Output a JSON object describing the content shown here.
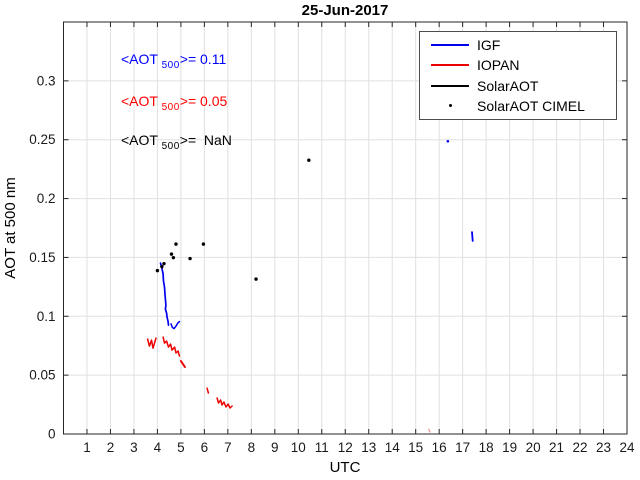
{
  "chart_data": {
    "type": "line",
    "title": "25-Jun-2017",
    "xlabel": "UTC",
    "ylabel": "AOT at 500 nm",
    "xlim": [
      0,
      24
    ],
    "ylim": [
      0,
      0.35
    ],
    "x_ticks": [
      1,
      2,
      3,
      4,
      5,
      6,
      7,
      8,
      9,
      10,
      11,
      12,
      13,
      14,
      15,
      16,
      17,
      18,
      19,
      20,
      21,
      22,
      23,
      24
    ],
    "y_ticks": [
      0,
      0.05,
      0.1,
      0.15,
      0.2,
      0.25,
      0.3
    ],
    "y_tick_labels": [
      "0",
      "0.05",
      "0.1",
      "0.15",
      "0.2",
      "0.25",
      "0.3"
    ],
    "grid": true,
    "grid_color": "#e0e0e0",
    "axis_color": "#262626",
    "legend_position": "top-right",
    "series": [
      {
        "name": "IGF",
        "color": "#0000EE",
        "type": "line",
        "segments": [
          {
            "pts": [
              [
                4.13,
                0.1452
              ],
              [
                4.19,
                0.1409
              ],
              [
                4.24,
                0.1358
              ],
              [
                4.26,
                0.1299
              ],
              [
                4.3,
                0.1248
              ],
              [
                4.32,
                0.1197
              ],
              [
                4.34,
                0.1146
              ],
              [
                4.36,
                0.1095
              ],
              [
                4.34,
                0.1061
              ],
              [
                4.39,
                0.1027
              ],
              [
                4.41,
                0.0993
              ],
              [
                4.45,
                0.0959
              ],
              [
                4.47,
                0.0925
              ]
            ],
            "width": 1.7
          },
          {
            "pts": [
              [
                4.58,
                0.0935
              ],
              [
                4.64,
                0.0905
              ],
              [
                4.71,
                0.0895
              ],
              [
                4.79,
                0.0917
              ],
              [
                4.88,
                0.0946
              ],
              [
                4.94,
                0.0955
              ]
            ],
            "width": 1.5
          },
          {
            "pts": [
              [
                17.4,
                0.1715
              ],
              [
                17.43,
                0.164
              ]
            ],
            "width": 1.8
          }
        ],
        "points": [
          [
            16.37,
            0.2487
          ]
        ],
        "marker_r": 1.3
      },
      {
        "name": "IOPAN",
        "color": "#EE0000",
        "type": "line",
        "segments": [
          {
            "pts": [
              [
                3.58,
                0.0806
              ],
              [
                3.66,
                0.0747
              ],
              [
                3.75,
                0.0798
              ],
              [
                3.81,
                0.073
              ],
              [
                3.94,
                0.0815
              ]
            ],
            "width": 1.5
          },
          {
            "pts": [
              [
                4.24,
                0.0823
              ],
              [
                4.3,
                0.0772
              ],
              [
                4.39,
                0.0789
              ],
              [
                4.47,
                0.0738
              ],
              [
                4.56,
                0.0764
              ],
              [
                4.62,
                0.0713
              ],
              [
                4.73,
                0.0738
              ],
              [
                4.79,
                0.0688
              ],
              [
                4.88,
                0.0705
              ],
              [
                4.94,
                0.0662
              ]
            ],
            "width": 1.5
          },
          {
            "pts": [
              [
                5.0,
                0.062
              ],
              [
                5.17,
                0.0569
              ]
            ],
            "width": 2.0
          },
          {
            "pts": [
              [
                6.11,
                0.039
              ],
              [
                6.17,
                0.0348
              ]
            ],
            "width": 1.5
          },
          {
            "pts": [
              [
                6.54,
                0.0306
              ],
              [
                6.6,
                0.0263
              ],
              [
                6.69,
                0.0289
              ],
              [
                6.75,
                0.0246
              ],
              [
                6.83,
                0.0272
              ],
              [
                6.92,
                0.0229
              ],
              [
                7.01,
                0.0255
              ],
              [
                7.09,
                0.0221
              ],
              [
                7.18,
                0.0238
              ]
            ],
            "width": 1.5
          },
          {
            "pts": [
              [
                15.56,
                0.004
              ],
              [
                15.61,
                0.0017
              ]
            ],
            "width": 1.2,
            "opacity": 0.45
          }
        ],
        "points": []
      },
      {
        "name": "SolarAOT",
        "color": "#000000",
        "type": "line",
        "segments": [],
        "points": []
      },
      {
        "name": "SolarAOT CIMEL",
        "color": "#000000",
        "type": "scatter",
        "segments": [],
        "points": [
          [
            4.0,
            0.1388
          ],
          [
            4.19,
            0.1422
          ],
          [
            4.28,
            0.1447
          ],
          [
            4.6,
            0.1528
          ],
          [
            4.68,
            0.1498
          ],
          [
            4.79,
            0.1613
          ],
          [
            5.39,
            0.149
          ],
          [
            5.96,
            0.1613
          ],
          [
            8.2,
            0.1316
          ],
          [
            10.45,
            0.2326
          ]
        ],
        "marker_r": 1.7
      }
    ],
    "annotations": [
      {
        "prefix": "<AOT ",
        "sub": "500",
        "suffix": ">= 0.11",
        "color": "#0000FF",
        "x": 121,
        "y": 51
      },
      {
        "prefix": "<AOT ",
        "sub": "500",
        "suffix": ">= 0.05",
        "color": "#FF0000",
        "x": 121,
        "y": 93
      },
      {
        "prefix": "<AOT ",
        "sub": "500",
        "suffix": ">=  NaN",
        "color": "#000000",
        "x": 121,
        "y": 132
      }
    ]
  },
  "legend": {
    "items": [
      {
        "label": "IGF",
        "color": "#0000EE",
        "marker": "line"
      },
      {
        "label": "IOPAN",
        "color": "#EE0000",
        "marker": "line"
      },
      {
        "label": "SolarAOT",
        "color": "#000000",
        "marker": "line"
      },
      {
        "label": "SolarAOT CIMEL",
        "color": "#000000",
        "marker": "dot"
      }
    ]
  }
}
